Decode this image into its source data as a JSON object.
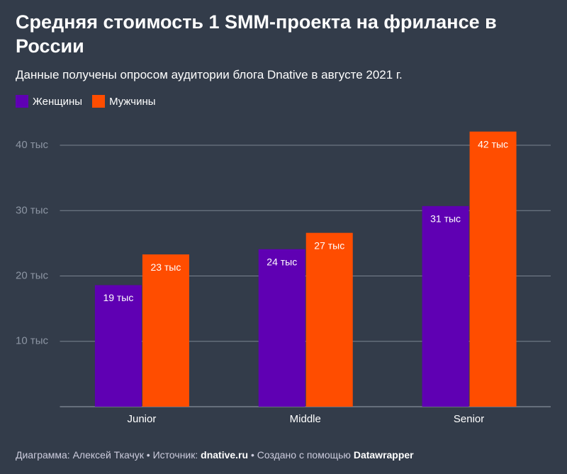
{
  "chart_data": {
    "type": "bar",
    "title": "Средняя стоимость 1 SMM-проекта на фрилансе в России",
    "subtitle": "Данные получены опросом аудитории блога Dnative в августе 2021 г.",
    "categories": [
      "Junior",
      "Middle",
      "Senior"
    ],
    "series": [
      {
        "name": "Женщины",
        "color": "#5f00b3",
        "values": [
          18.6,
          24.1,
          30.7
        ],
        "value_labels": [
          "19 тыс",
          "24 тыс",
          "31 тыс"
        ]
      },
      {
        "name": "Мужчины",
        "color": "#ff4d00",
        "values": [
          23.3,
          26.6,
          42.1
        ],
        "value_labels": [
          "23 тыс",
          "27 тыс",
          "42 тыс"
        ]
      }
    ],
    "ylim": [
      0,
      42.5
    ],
    "yticks": [
      {
        "value": 10,
        "label": "10 тыс"
      },
      {
        "value": 20,
        "label": "20 тыс"
      },
      {
        "value": 30,
        "label": "30 тыс"
      },
      {
        "value": 40,
        "label": "40 тыс"
      }
    ],
    "grid": true,
    "footer": [
      "Диаграмма: Алексей Ткачук • Источник: ",
      "dnative.ru",
      " • Создано с помощью ",
      "Datawrapper"
    ]
  }
}
